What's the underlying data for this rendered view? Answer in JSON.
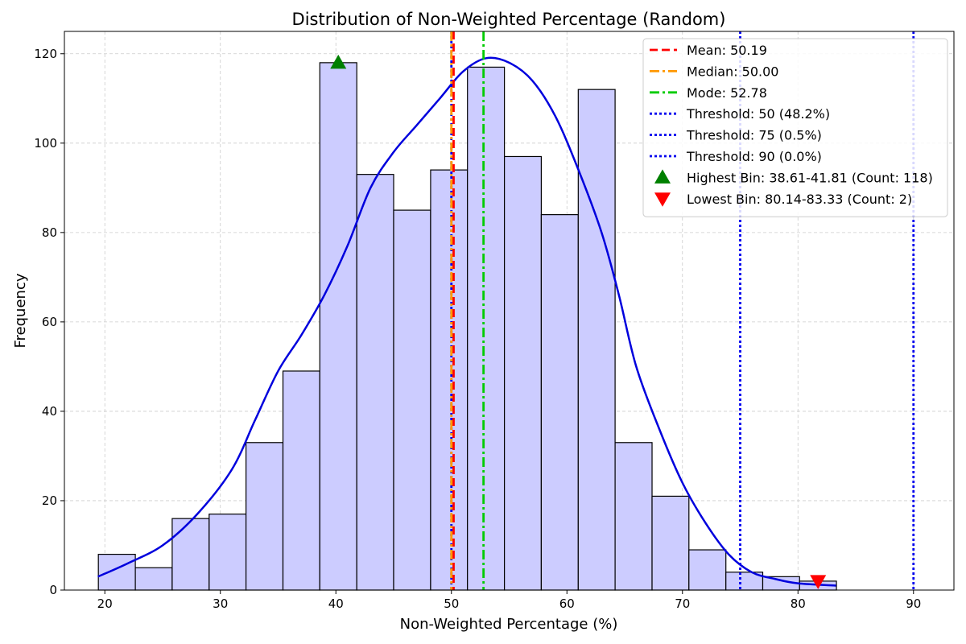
{
  "chart_data": {
    "type": "bar",
    "title": "Distribution of Non-Weighted Percentage (Random)",
    "xlabel": "Non-Weighted Percentage (%)",
    "ylabel": "Frequency",
    "xlim": [
      16.5,
      93.5
    ],
    "ylim": [
      0,
      125
    ],
    "xticks": [
      20,
      30,
      40,
      50,
      60,
      70,
      80,
      90
    ],
    "yticks": [
      0,
      20,
      40,
      60,
      80,
      100,
      120
    ],
    "grid": true,
    "legend_position": "top-right",
    "bin_edges": [
      19.44,
      22.64,
      25.83,
      29.03,
      32.22,
      35.42,
      38.61,
      41.81,
      45.0,
      48.2,
      51.39,
      54.59,
      57.78,
      60.98,
      64.17,
      67.37,
      70.56,
      73.76,
      76.95,
      80.14,
      83.33
    ],
    "values": [
      8,
      5,
      16,
      17,
      33,
      49,
      118,
      93,
      85,
      94,
      117,
      97,
      84,
      112,
      33,
      21,
      9,
      4,
      3,
      2
    ],
    "bar_color": "#ccccff",
    "kde": {
      "color": "#0000dd",
      "x": [
        19.4,
        22,
        25,
        28,
        31,
        33,
        35,
        37,
        39,
        41,
        43,
        45,
        47,
        49,
        51,
        53,
        55,
        57,
        59,
        61,
        63,
        64.5,
        66,
        68,
        70,
        72,
        74,
        76,
        78,
        80,
        83.3
      ],
      "y": [
        3,
        6,
        10,
        17,
        27,
        38,
        49,
        57,
        66,
        77,
        90,
        98,
        104,
        110,
        116,
        119,
        118,
        114,
        106,
        94,
        80,
        66,
        50,
        36,
        24,
        15,
        8,
        4,
        2.5,
        1.5,
        1
      ]
    },
    "lines": [
      {
        "name": "Mean: 50.19",
        "x": 50.19,
        "color": "#ff0000",
        "style": "dashed"
      },
      {
        "name": "Median: 50.00",
        "x": 50.0,
        "color": "#ff9900",
        "style": "dashdot"
      },
      {
        "name": "Mode: 52.78",
        "x": 52.78,
        "color": "#00cc00",
        "style": "dashdot"
      },
      {
        "name": "Threshold: 50 (48.2%)",
        "x": 50,
        "color": "#0000ee",
        "style": "dotted"
      },
      {
        "name": "Threshold: 75 (0.5%)",
        "x": 75,
        "color": "#0000ee",
        "style": "dotted"
      },
      {
        "name": "Threshold: 90 (0.0%)",
        "x": 90,
        "color": "#0000ee",
        "style": "dotted"
      }
    ],
    "markers": [
      {
        "name": "Highest Bin: 38.61-41.81 (Count: 118)",
        "x": 40.21,
        "y": 118,
        "shape": "triangle-up",
        "color": "#008000"
      },
      {
        "name": "Lowest Bin: 80.14-83.33 (Count: 2)",
        "x": 81.74,
        "y": 2,
        "shape": "triangle-down",
        "color": "#ff0000"
      }
    ]
  }
}
